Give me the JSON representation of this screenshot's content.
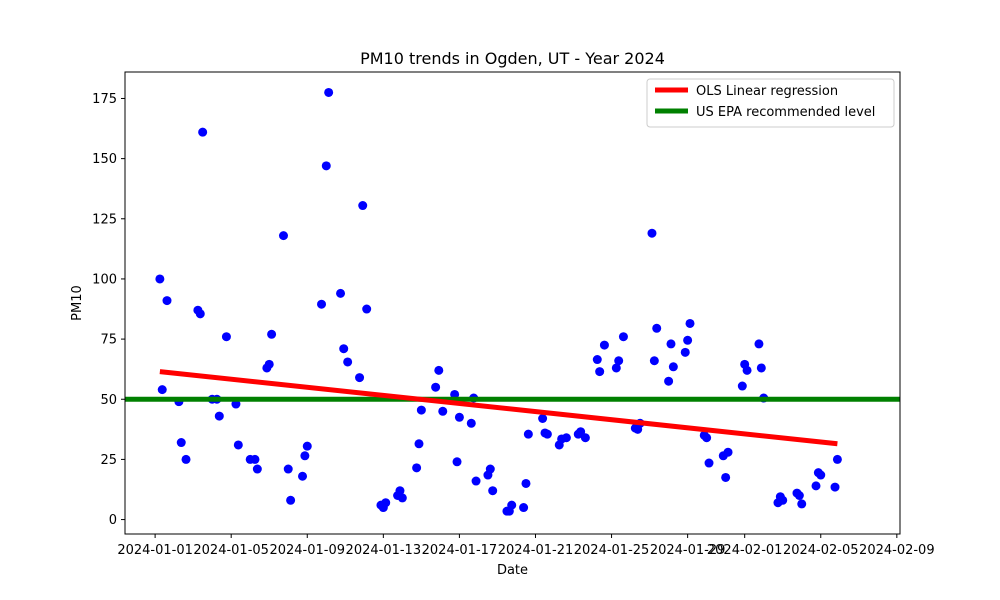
{
  "chart_data": {
    "type": "scatter",
    "title": "PM10 trends in Ogden, UT - Year 2024",
    "xlabel": "Date",
    "ylabel": "PM10",
    "xlim": [
      "2023-12-30T10:00",
      "2024-02-09T04:00"
    ],
    "ylim": [
      -6,
      186
    ],
    "x_ticks": [
      "2024-01-01",
      "2024-01-05",
      "2024-01-09",
      "2024-01-13",
      "2024-01-17",
      "2024-01-21",
      "2024-01-25",
      "2024-01-29",
      "2024-02-01",
      "2024-02-05",
      "2024-02-09"
    ],
    "y_ticks": [
      0,
      25,
      50,
      75,
      100,
      125,
      150,
      175
    ],
    "grid": false,
    "legend_position": "upper-right",
    "colors": {
      "points": "#0000ff",
      "regression": "#ff0000",
      "epa": "#008000"
    },
    "series": [
      {
        "name": "PM10",
        "kind": "scatter",
        "points": [
          [
            "2024-01-01T06:00",
            100
          ],
          [
            "2024-01-01T09:00",
            54
          ],
          [
            "2024-01-01T15:00",
            91
          ],
          [
            "2024-01-02T06:00",
            49
          ],
          [
            "2024-01-02T09:00",
            32
          ],
          [
            "2024-01-02T15:00",
            25
          ],
          [
            "2024-01-03T06:00",
            87
          ],
          [
            "2024-01-03T09:00",
            85.5
          ],
          [
            "2024-01-03T12:00",
            161
          ],
          [
            "2024-01-04T00:00",
            50
          ],
          [
            "2024-01-04T06:00",
            50
          ],
          [
            "2024-01-04T09:00",
            43
          ],
          [
            "2024-01-04T18:00",
            76
          ],
          [
            "2024-01-05T06:00",
            48
          ],
          [
            "2024-01-05T09:00",
            31
          ],
          [
            "2024-01-06T00:00",
            25
          ],
          [
            "2024-01-06T06:00",
            25
          ],
          [
            "2024-01-06T09:00",
            21
          ],
          [
            "2024-01-06T21:00",
            63
          ],
          [
            "2024-01-07T00:00",
            64.5
          ],
          [
            "2024-01-07T03:00",
            77
          ],
          [
            "2024-01-07T18:00",
            118
          ],
          [
            "2024-01-08T00:00",
            21
          ],
          [
            "2024-01-08T03:00",
            8
          ],
          [
            "2024-01-08T18:00",
            18
          ],
          [
            "2024-01-08T21:00",
            26.5
          ],
          [
            "2024-01-09T00:00",
            30.5
          ],
          [
            "2024-01-09T18:00",
            89.5
          ],
          [
            "2024-01-10T00:00",
            147
          ],
          [
            "2024-01-10T03:00",
            177.5
          ],
          [
            "2024-01-10T18:00",
            94
          ],
          [
            "2024-01-10T22:00",
            71
          ],
          [
            "2024-01-11T03:00",
            65.5
          ],
          [
            "2024-01-11T18:00",
            59
          ],
          [
            "2024-01-11T22:00",
            130.5
          ],
          [
            "2024-01-12T03:00",
            87.5
          ],
          [
            "2024-01-12T21:00",
            6
          ],
          [
            "2024-01-13T00:00",
            5
          ],
          [
            "2024-01-13T03:00",
            7
          ],
          [
            "2024-01-13T18:00",
            10
          ],
          [
            "2024-01-13T21:00",
            12
          ],
          [
            "2024-01-14T00:00",
            9
          ],
          [
            "2024-01-14T18:00",
            21.5
          ],
          [
            "2024-01-14T21:00",
            31.5
          ],
          [
            "2024-01-15T00:00",
            45.5
          ],
          [
            "2024-01-15T18:00",
            55
          ],
          [
            "2024-01-15T22:00",
            62
          ],
          [
            "2024-01-16T03:00",
            45
          ],
          [
            "2024-01-16T18:00",
            52
          ],
          [
            "2024-01-16T21:00",
            24
          ],
          [
            "2024-01-17T00:00",
            42.5
          ],
          [
            "2024-01-17T15:00",
            40
          ],
          [
            "2024-01-17T18:00",
            50.5
          ],
          [
            "2024-01-17T21:00",
            16
          ],
          [
            "2024-01-18T12:00",
            18.5
          ],
          [
            "2024-01-18T15:00",
            21
          ],
          [
            "2024-01-18T18:00",
            12
          ],
          [
            "2024-01-19T12:00",
            3.5
          ],
          [
            "2024-01-19T15:00",
            3.5
          ],
          [
            "2024-01-19T18:00",
            6
          ],
          [
            "2024-01-20T09:00",
            5
          ],
          [
            "2024-01-20T12:00",
            15
          ],
          [
            "2024-01-20T15:00",
            35.5
          ],
          [
            "2024-01-21T09:00",
            42
          ],
          [
            "2024-01-21T12:00",
            36
          ],
          [
            "2024-01-21T15:00",
            35.5
          ],
          [
            "2024-01-22T06:00",
            31
          ],
          [
            "2024-01-22T09:00",
            33.5
          ],
          [
            "2024-01-22T15:00",
            34
          ],
          [
            "2024-01-23T06:00",
            35.5
          ],
          [
            "2024-01-23T09:00",
            36.5
          ],
          [
            "2024-01-23T15:00",
            34
          ],
          [
            "2024-01-24T06:00",
            66.5
          ],
          [
            "2024-01-24T09:00",
            61.5
          ],
          [
            "2024-01-24T15:00",
            72.5
          ],
          [
            "2024-01-25T06:00",
            63
          ],
          [
            "2024-01-25T09:00",
            66
          ],
          [
            "2024-01-25T15:00",
            76
          ],
          [
            "2024-01-26T06:00",
            38
          ],
          [
            "2024-01-26T09:00",
            37.5
          ],
          [
            "2024-01-26T12:00",
            40
          ],
          [
            "2024-01-27T03:00",
            119
          ],
          [
            "2024-01-27T06:00",
            66
          ],
          [
            "2024-01-27T09:00",
            79.5
          ],
          [
            "2024-01-28T00:00",
            57.5
          ],
          [
            "2024-01-28T03:00",
            73
          ],
          [
            "2024-01-28T06:00",
            63.5
          ],
          [
            "2024-01-28T21:00",
            69.5
          ],
          [
            "2024-01-29T00:00",
            74.5
          ],
          [
            "2024-01-29T03:00",
            81.5
          ],
          [
            "2024-01-29T21:00",
            35
          ],
          [
            "2024-01-30T00:00",
            34
          ],
          [
            "2024-01-30T03:00",
            23.5
          ],
          [
            "2024-01-30T21:00",
            26.5
          ],
          [
            "2024-01-31T00:00",
            17.5
          ],
          [
            "2024-01-31T03:00",
            28
          ],
          [
            "2024-01-31T21:00",
            55.5
          ],
          [
            "2024-02-01T00:00",
            64.5
          ],
          [
            "2024-02-01T03:00",
            62
          ],
          [
            "2024-02-01T18:00",
            73
          ],
          [
            "2024-02-01T21:00",
            63
          ],
          [
            "2024-02-02T00:00",
            50.5
          ],
          [
            "2024-02-02T18:00",
            7
          ],
          [
            "2024-02-02T21:00",
            9.5
          ],
          [
            "2024-02-03T00:00",
            8
          ],
          [
            "2024-02-03T18:00",
            11
          ],
          [
            "2024-02-03T21:00",
            10
          ],
          [
            "2024-02-04T00:00",
            6.5
          ],
          [
            "2024-02-04T18:00",
            14
          ],
          [
            "2024-02-04T21:00",
            19.5
          ],
          [
            "2024-02-05T00:00",
            18.5
          ],
          [
            "2024-02-05T18:00",
            13.5
          ],
          [
            "2024-02-05T21:00",
            25
          ]
        ]
      },
      {
        "name": "OLS Linear regression",
        "kind": "line",
        "points": [
          [
            "2024-01-01T06:00",
            61.5
          ],
          [
            "2024-02-05T21:00",
            31.5
          ]
        ]
      },
      {
        "name": "US EPA recommended level",
        "kind": "hline",
        "y": 50
      }
    ]
  }
}
